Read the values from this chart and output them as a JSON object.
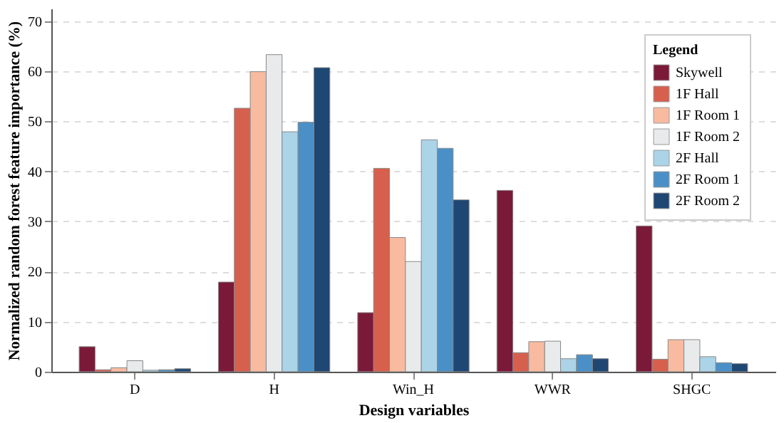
{
  "chart_data": {
    "type": "bar",
    "xlabel": "Design variables",
    "ylabel": "Normalized random forest feature importance (%)",
    "legend_title": "Legend",
    "categories": [
      "D",
      "H",
      "Win_H",
      "WWR",
      "SHGC"
    ],
    "series": [
      {
        "name": "Skywell",
        "color": "#7b1a38",
        "values": [
          5.0,
          17.9,
          11.8,
          36.2,
          29.1
        ]
      },
      {
        "name": "1F Hall",
        "color": "#d6604d",
        "values": [
          0.4,
          52.6,
          40.6,
          3.8,
          2.5
        ]
      },
      {
        "name": "1F Room 1",
        "color": "#f8bba0",
        "values": [
          0.8,
          59.9,
          26.8,
          6.0,
          6.4
        ]
      },
      {
        "name": "1F Room 2",
        "color": "#e8eaec",
        "values": [
          2.2,
          63.3,
          22.0,
          6.1,
          6.4
        ]
      },
      {
        "name": "2F Hall",
        "color": "#acd4e8",
        "values": [
          0.3,
          47.9,
          46.3,
          2.6,
          3.0
        ]
      },
      {
        "name": "2F Room 1",
        "color": "#4a90c6",
        "values": [
          0.4,
          49.8,
          44.6,
          3.4,
          1.8
        ]
      },
      {
        "name": "2F Room 2",
        "color": "#1e4773",
        "values": [
          0.6,
          60.7,
          34.3,
          2.6,
          1.6
        ]
      }
    ],
    "ylim": [
      0,
      72.5
    ],
    "yticks": [
      0,
      10,
      20,
      30,
      40,
      50,
      60,
      70
    ],
    "grid": "y",
    "legend": "top right"
  }
}
